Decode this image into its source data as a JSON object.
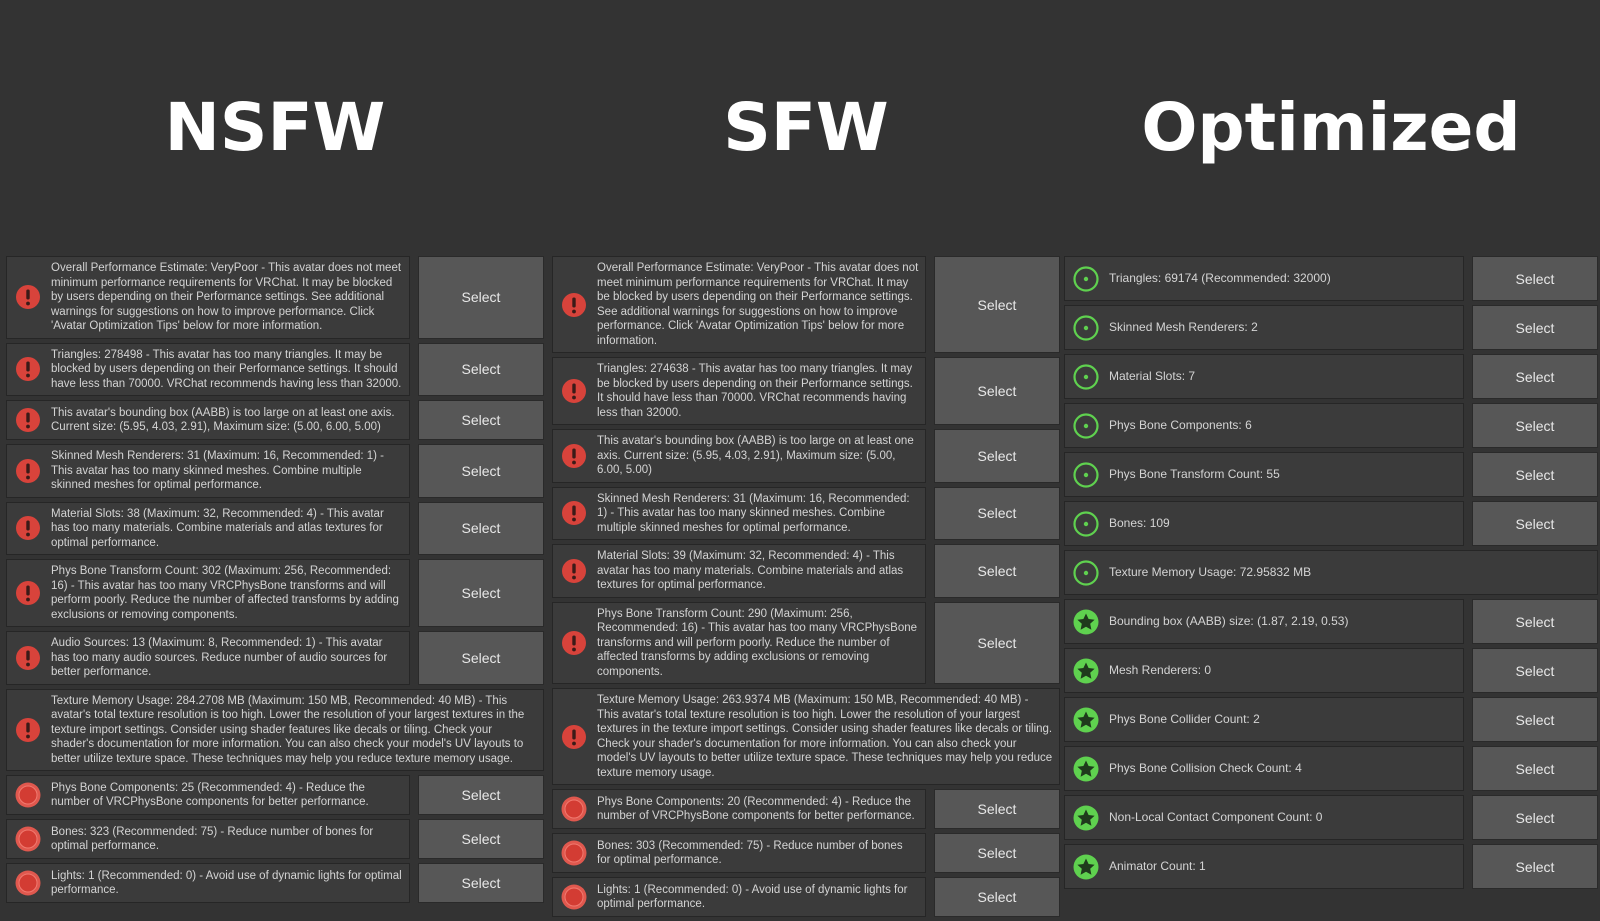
{
  "columns": [
    {
      "title": "NSFW",
      "items": [
        {
          "icon": "error",
          "text": "Overall Performance Estimate: VeryPoor - This avatar does not meet minimum performance requirements for VRChat. It may be blocked by users depending on their Performance settings. See additional warnings for suggestions on how to improve performance. Click 'Avatar Optimization Tips' below for more information.",
          "button": "Select"
        },
        {
          "icon": "error",
          "text": "Triangles: 278498 - This avatar has too many triangles. It may be blocked by users depending on their Performance settings. It should have less than 70000. VRChat recommends having less than 32000.",
          "button": "Select"
        },
        {
          "icon": "error",
          "text": "This avatar's bounding box (AABB) is too large on at least one axis. Current size: (5.95, 4.03, 2.91), Maximum size: (5.00, 6.00, 5.00)",
          "button": "Select"
        },
        {
          "icon": "error",
          "text": "Skinned Mesh Renderers: 31 (Maximum: 16, Recommended: 1) - This avatar has too many skinned meshes. Combine multiple skinned meshes for optimal performance.",
          "button": "Select"
        },
        {
          "icon": "error",
          "text": "Material Slots: 38 (Maximum: 32, Recommended: 4) - This avatar has too many materials. Combine materials and atlas textures for optimal performance.",
          "button": "Select"
        },
        {
          "icon": "error",
          "text": "Phys Bone Transform Count: 302 (Maximum: 256, Recommended: 16) - This avatar has too many VRCPhysBone transforms and will perform poorly. Reduce the number of affected transforms by adding exclusions or removing components.",
          "button": "Select"
        },
        {
          "icon": "error",
          "text": "Audio Sources: 13 (Maximum: 8, Recommended: 1) - This avatar has too many audio sources. Reduce number of audio sources for better performance.",
          "button": "Select"
        },
        {
          "icon": "error",
          "text": "Texture Memory Usage: 284.2708 MB (Maximum: 150 MB, Recommended: 40 MB) - This avatar's total texture resolution is too high. Lower the resolution of your largest textures in the texture import settings. Consider using shader features like decals or tiling. Check your shader's documentation for more information. You can also check your model's UV layouts to better utilize texture space. These techniques may help you reduce texture memory usage."
        },
        {
          "icon": "warning",
          "text": "Phys Bone Components: 25 (Recommended: 4) - Reduce the number of VRCPhysBone components for better performance.",
          "button": "Select"
        },
        {
          "icon": "warning",
          "text": "Bones: 323 (Recommended: 75) - Reduce number of bones for optimal performance.",
          "button": "Select"
        },
        {
          "icon": "warning",
          "text": "Lights: 1 (Recommended: 0) - Avoid use of dynamic lights for optimal performance.",
          "button": "Select"
        }
      ]
    },
    {
      "title": "SFW",
      "items": [
        {
          "icon": "error",
          "text": "Overall Performance Estimate: VeryPoor - This avatar does not meet minimum performance requirements for VRChat. It may be blocked by users depending on their Performance settings. See additional warnings for suggestions on how to improve performance. Click 'Avatar Optimization Tips' below for more information.",
          "button": "Select"
        },
        {
          "icon": "error",
          "text": "Triangles: 274638 - This avatar has too many triangles. It may be blocked by users depending on their Performance settings. It should have less than 70000. VRChat recommends having less than 32000.",
          "button": "Select"
        },
        {
          "icon": "error",
          "text": "This avatar's bounding box (AABB) is too large on at least one axis. Current size: (5.95, 4.03, 2.91), Maximum size: (5.00, 6.00, 5.00)",
          "button": "Select"
        },
        {
          "icon": "error",
          "text": "Skinned Mesh Renderers: 31 (Maximum: 16, Recommended: 1) - This avatar has too many skinned meshes. Combine multiple skinned meshes for optimal performance.",
          "button": "Select"
        },
        {
          "icon": "error",
          "text": "Material Slots: 39 (Maximum: 32, Recommended: 4) - This avatar has too many materials. Combine materials and atlas textures for optimal performance.",
          "button": "Select"
        },
        {
          "icon": "error",
          "text": "Phys Bone Transform Count: 290 (Maximum: 256, Recommended: 16) - This avatar has too many VRCPhysBone transforms and will perform poorly. Reduce the number of affected transforms by adding exclusions or removing components.",
          "button": "Select"
        },
        {
          "icon": "error",
          "text": "Texture Memory Usage: 263.9374 MB (Maximum: 150 MB, Recommended: 40 MB) - This avatar's total texture resolution is too high. Lower the resolution of your largest textures in the texture import settings. Consider using shader features like decals or tiling. Check your shader's documentation for more information. You can also check your model's UV layouts to better utilize texture space. These techniques may help you reduce texture memory usage."
        },
        {
          "icon": "warning",
          "text": "Phys Bone Components: 20 (Recommended: 4) - Reduce the number of VRCPhysBone components for better performance.",
          "button": "Select"
        },
        {
          "icon": "warning",
          "text": "Bones: 303 (Recommended: 75) - Reduce number of bones for optimal performance.",
          "button": "Select"
        },
        {
          "icon": "warning",
          "text": "Lights: 1 (Recommended: 0) - Avoid use of dynamic lights for optimal performance.",
          "button": "Select"
        }
      ]
    },
    {
      "title": "Optimized",
      "items": [
        {
          "icon": "good",
          "text": "Triangles: 69174 (Recommended: 32000)",
          "button": "Select"
        },
        {
          "icon": "good",
          "text": "Skinned Mesh Renderers: 2",
          "button": "Select"
        },
        {
          "icon": "good",
          "text": "Material Slots: 7",
          "button": "Select"
        },
        {
          "icon": "good",
          "text": "Phys Bone Components: 6",
          "button": "Select"
        },
        {
          "icon": "good",
          "text": "Phys Bone Transform Count: 55",
          "button": "Select"
        },
        {
          "icon": "good",
          "text": "Bones: 109",
          "button": "Select"
        },
        {
          "icon": "good",
          "text": "Texture Memory Usage: 72.95832 MB"
        },
        {
          "icon": "excellent",
          "text": "Bounding box (AABB) size: (1.87, 2.19, 0.53)",
          "button": "Select"
        },
        {
          "icon": "excellent",
          "text": "Mesh Renderers: 0",
          "button": "Select"
        },
        {
          "icon": "excellent",
          "text": "Phys Bone Collider Count: 2",
          "button": "Select"
        },
        {
          "icon": "excellent",
          "text": "Phys Bone Collision Check Count: 4",
          "button": "Select"
        },
        {
          "icon": "excellent",
          "text": "Non-Local Contact Component Count: 0",
          "button": "Select"
        },
        {
          "icon": "excellent",
          "text": "Animator Count: 1",
          "button": "Select"
        }
      ]
    }
  ]
}
